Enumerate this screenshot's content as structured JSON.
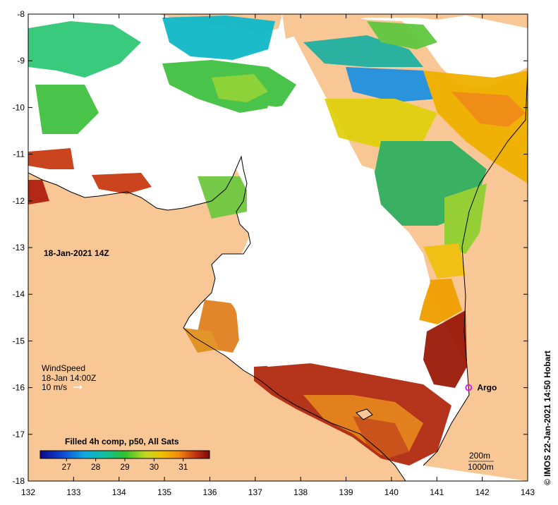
{
  "map": {
    "datetime_label": "18-Jan-2021 14Z",
    "credit": "© IMOS 22-Jan-2021 14:50 Hobart",
    "x_ticks": [
      "132",
      "133",
      "134",
      "135",
      "136",
      "137",
      "138",
      "139",
      "140",
      "141",
      "142",
      "143"
    ],
    "y_ticks": [
      "-8",
      "-9",
      "-10",
      "-11",
      "-12",
      "-13",
      "-14",
      "-15",
      "-16",
      "-17",
      "-18"
    ],
    "lon_range": [
      132,
      143
    ],
    "lat_range": [
      -18,
      -8
    ]
  },
  "wind": {
    "title": "WindSpeed",
    "time": "18-Jan 14:00Z",
    "scale": "10 m/s"
  },
  "argo": {
    "label": "Argo",
    "lon": 141.7,
    "lat": -16.0
  },
  "colorbar": {
    "title": "Filled 4h comp, p50, All Sats",
    "ticks": [
      "27",
      "28",
      "29",
      "30",
      "31"
    ],
    "range": [
      26.1,
      31.9
    ]
  },
  "contours": {
    "label_200": "200m",
    "label_1000": "1000m"
  },
  "colors": {
    "land": "#f9c795",
    "no_data": "#ffffff",
    "argo": "#e020e0"
  }
}
